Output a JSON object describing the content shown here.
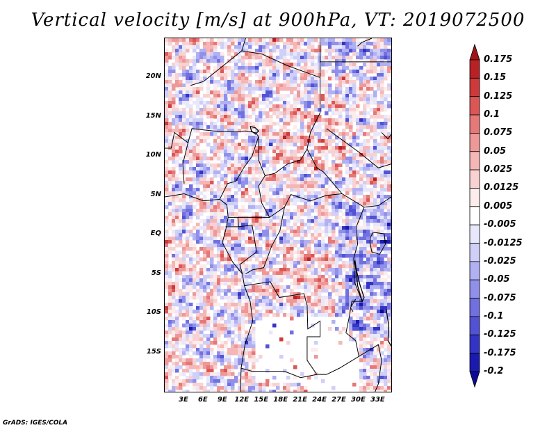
{
  "title": "Vertical velocity [m/s] at 900hPa, VT: 2019072500",
  "credit": "GrADS: IGES/COLA",
  "map": {
    "lon_range": [
      0,
      35
    ],
    "lat_range": [
      -20,
      25
    ],
    "lat_ticks": [
      "20N",
      "15N",
      "10N",
      "5N",
      "EQ",
      "5S",
      "10S",
      "15S"
    ],
    "lat_values": [
      20,
      15,
      10,
      5,
      0,
      -5,
      -10,
      -15
    ],
    "lon_ticks": [
      "3E",
      "6E",
      "9E",
      "12E",
      "15E",
      "18E",
      "21E",
      "24E",
      "27E",
      "30E",
      "33E"
    ],
    "lon_values": [
      3,
      6,
      9,
      12,
      15,
      18,
      21,
      24,
      27,
      30,
      33
    ]
  },
  "colorbar": {
    "labels": [
      "0.175",
      "0.15",
      "0.125",
      "0.1",
      "0.075",
      "0.05",
      "0.025",
      "0.0125",
      "0.005",
      "-0.005",
      "-0.0125",
      "-0.025",
      "-0.05",
      "-0.075",
      "-0.1",
      "-0.125",
      "-0.175",
      "-0.2"
    ],
    "colors": [
      "#a01418",
      "#b82226",
      "#cc3a3a",
      "#dc5656",
      "#e67878",
      "#ee9898",
      "#f4b6b6",
      "#f8d2d2",
      "#fcecec",
      "#ffffff",
      "#e8e8fc",
      "#cfcff8",
      "#b0b0f2",
      "#9090ea",
      "#7070e0",
      "#5252d4",
      "#3434c4",
      "#1a1aae",
      "#0a0a96"
    ]
  }
}
